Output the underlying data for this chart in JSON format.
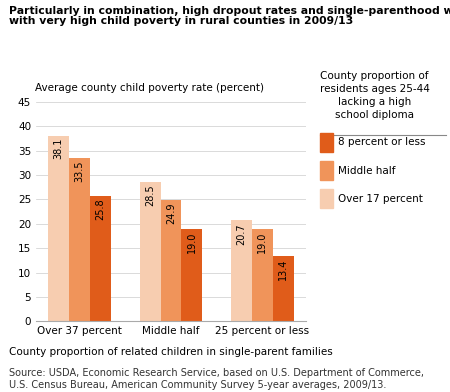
{
  "title_line1": "Particularly in combination, high dropout rates and single-parenthood were associated",
  "title_line2": "with very high child poverty in rural counties in 2009/13",
  "ylabel": "Average county child poverty rate (percent)",
  "xlabel": "County proportion of related children in single-parent families",
  "source": "Source: USDA, Economic Research Service, based on U.S. Department of Commerce,\nU.S. Census Bureau, American Community Survey 5-year averages, 2009/13.",
  "groups": [
    "Over 37 percent",
    "Middle half",
    "25 percent or less"
  ],
  "series_labels": [
    "Over 17 percent",
    "Middle half",
    "8 percent or less"
  ],
  "legend_title": "County proportion of\nresidents ages 25-44\nlacking a high\nschool diploma",
  "values": [
    [
      38.1,
      28.5,
      20.7
    ],
    [
      33.5,
      24.9,
      19.0
    ],
    [
      25.8,
      19.0,
      13.4
    ]
  ],
  "colors": [
    "#f7cdb0",
    "#f0945a",
    "#e05c1a"
  ],
  "ylim": [
    0,
    45
  ],
  "yticks": [
    0,
    5,
    10,
    15,
    20,
    25,
    30,
    35,
    40,
    45
  ],
  "bar_width": 0.23,
  "title_fontsize": 7.8,
  "axis_label_fontsize": 7.5,
  "tick_fontsize": 7.5,
  "value_fontsize": 7.0,
  "legend_fontsize": 7.5,
  "source_fontsize": 7.0
}
